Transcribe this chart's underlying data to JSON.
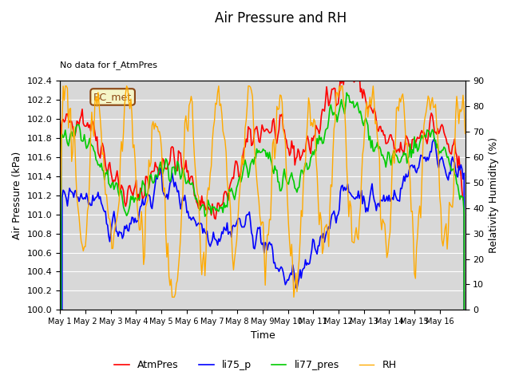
{
  "title": "Air Pressure and RH",
  "top_left_note": "No data for f_AtmPres",
  "bc_met_label": "BC_met",
  "xlabel": "Time",
  "ylabel_left": "Air Pressure (kPa)",
  "ylabel_right": "Relativity Humidity (%)",
  "ylim_left": [
    100.0,
    102.4
  ],
  "ylim_right": [
    0,
    90
  ],
  "yticks_left": [
    100.0,
    100.2,
    100.4,
    100.6,
    100.8,
    101.0,
    101.2,
    101.4,
    101.6,
    101.8,
    102.0,
    102.2,
    102.4
  ],
  "yticks_right": [
    0,
    10,
    20,
    30,
    40,
    50,
    60,
    70,
    80,
    90
  ],
  "xtick_labels": [
    "May 1",
    "May 2",
    "May 3",
    "May 4",
    "May 5",
    "May 6",
    "May 7",
    "May 8",
    "May 9",
    "May 10",
    "May 11",
    "May 12",
    "May 13",
    "May 14",
    "May 15",
    "May 16"
  ],
  "n_days": 16,
  "colors": {
    "AtmPres": "#ff0000",
    "li75_p": "#0000ff",
    "li77_pres": "#00cc00",
    "RH": "#ffaa00"
  },
  "legend_labels": [
    "AtmPres",
    "li75_p",
    "li77_pres",
    "RH"
  ],
  "background_color": "#e8e8e8",
  "plot_bg_color": "#d8d8d8"
}
